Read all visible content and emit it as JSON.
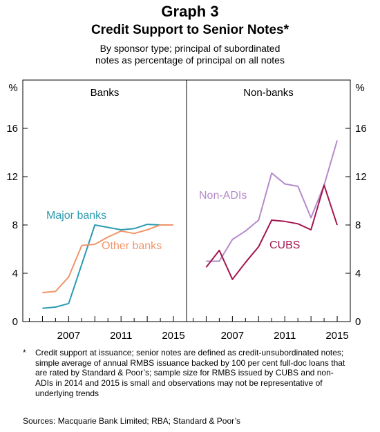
{
  "title": "Graph 3",
  "subtitle": "Credit Support to Senior Notes*",
  "description_lines": [
    "By sponsor type; principal of subordinated",
    "notes as percentage of principal on all notes"
  ],
  "footnote_marker": "*",
  "footnote": "Credit support at issuance; senior notes are defined as credit-unsubordinated notes; simple average of annual RMBS issuance backed by 100 per cent full-doc loans that are rated by Standard & Poor’s; sample size for RMBS issued by CUBS and non-ADIs in 2014 and 2015 is small and observations may not be representative of underlying trends",
  "sources": "Sources:  Macquarie Bank Limited; RBA; Standard & Poor’s",
  "colors": {
    "major_banks": "#2a9bb0",
    "other_banks": "#f0956a",
    "non_adis": "#b48ac8",
    "cubs": "#a3144f"
  },
  "chart_data": [
    {
      "type": "line",
      "panel": "Banks",
      "unit_left": "%",
      "unit_right": "%",
      "ylim": [
        0,
        20
      ],
      "yticks": [
        0,
        4,
        8,
        12,
        16
      ],
      "xlim": [
        2003.5,
        2016
      ],
      "xticks": [
        2007,
        2011,
        2015
      ],
      "grid": false,
      "x": [
        2004,
        2005,
        2006,
        2007,
        2008,
        2009,
        2010,
        2011,
        2012,
        2013,
        2014,
        2015
      ],
      "series": [
        {
          "name": "Major banks",
          "color": "#2a9bb0",
          "values": [
            null,
            1.1,
            1.2,
            1.5,
            null,
            8.0,
            7.8,
            7.6,
            7.7,
            8.05,
            8.0,
            8.0
          ]
        },
        {
          "name": "Other banks",
          "color": "#f0956a",
          "values": [
            null,
            2.4,
            2.5,
            3.7,
            6.3,
            6.4,
            7.0,
            7.5,
            7.3,
            7.6,
            8.0,
            8.0
          ]
        }
      ]
    },
    {
      "type": "line",
      "panel": "Non-banks",
      "unit_left": "%",
      "unit_right": "%",
      "ylim": [
        0,
        20
      ],
      "yticks": [
        0,
        4,
        8,
        12,
        16
      ],
      "xlim": [
        2003.5,
        2016
      ],
      "xticks": [
        2007,
        2011,
        2015
      ],
      "grid": false,
      "x": [
        2005,
        2006,
        2007,
        2008,
        2009,
        2010,
        2011,
        2012,
        2013,
        2014,
        2015
      ],
      "series": [
        {
          "name": "Non-ADIs",
          "color": "#b48ac8",
          "values": [
            5.0,
            5.0,
            6.8,
            7.5,
            8.4,
            12.3,
            11.4,
            11.2,
            8.6,
            11.3,
            15.0
          ]
        },
        {
          "name": "CUBS",
          "color": "#a3144f",
          "values": [
            4.5,
            5.9,
            3.5,
            4.9,
            6.2,
            8.4,
            8.3,
            8.1,
            7.6,
            11.3,
            8.0
          ]
        }
      ]
    }
  ]
}
